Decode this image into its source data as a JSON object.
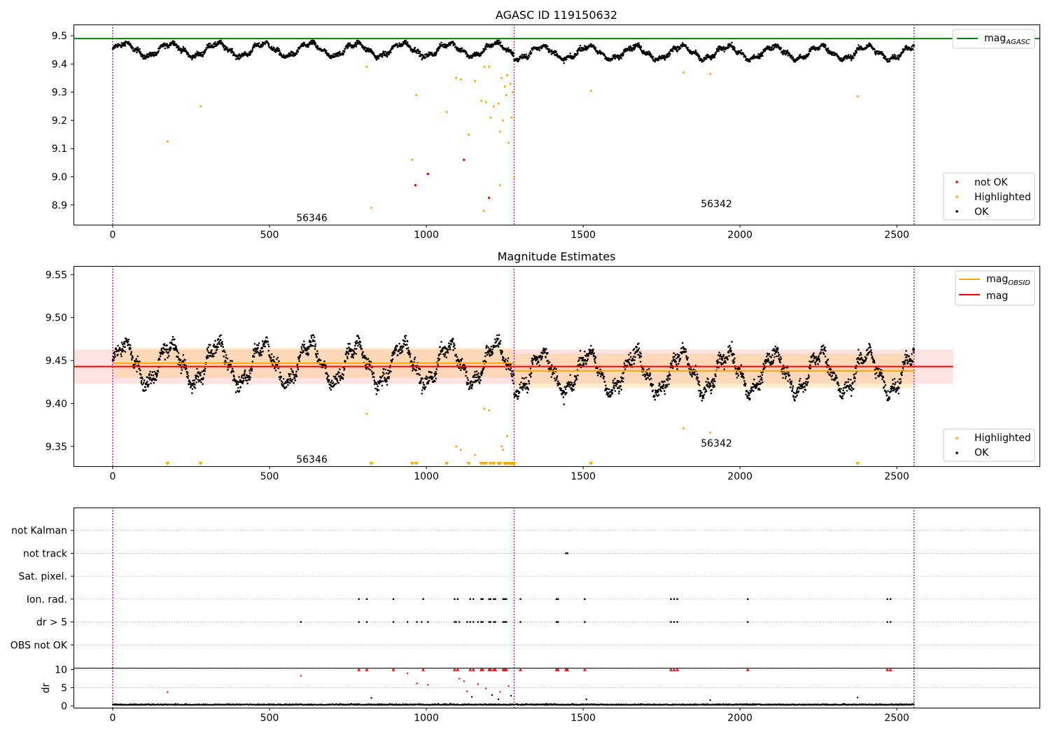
{
  "chart_data": [
    {
      "type": "scatter",
      "title": "AGASC ID 119150632",
      "xlabel": "",
      "ylabel": "",
      "xlim": [
        -125,
        2955
      ],
      "ylim": [
        8.83,
        9.54
      ],
      "xticks": [
        0,
        500,
        1000,
        1500,
        2000,
        2500
      ],
      "yticks": [
        8.9,
        9.0,
        9.1,
        9.2,
        9.3,
        9.4,
        9.5
      ],
      "ytick_labels": [
        "8.9",
        "9.0",
        "9.1",
        "9.2",
        "9.3",
        "9.4",
        "9.5"
      ],
      "vlines": [
        0,
        1280,
        2555
      ],
      "hline": {
        "name": "mag_AGASC",
        "value": 9.49,
        "color": "#008000"
      },
      "legend_top": {
        "label": "mag",
        "sub": "AGASC"
      },
      "legend_bottom": [
        {
          "label": "not OK",
          "color": "#ff0000"
        },
        {
          "label": "Highlighted",
          "color": "#ffa500"
        },
        {
          "label": "OK",
          "color": "#000000"
        }
      ],
      "annotations": [
        {
          "text": "56346",
          "x": 635,
          "y": 8.855
        },
        {
          "text": "56342",
          "x": 1925,
          "y": 8.905
        }
      ],
      "ok_series": {
        "name": "OK",
        "x_range": [
          0,
          2555
        ],
        "baseline": 9.445,
        "mean_by_obsid": [
          9.45,
          9.44
        ],
        "amplitude": 0.025,
        "period": 148
      },
      "highlighted_points": [
        {
          "x": 175,
          "y": 9.125
        },
        {
          "x": 280,
          "y": 9.25
        },
        {
          "x": 810,
          "y": 9.39
        },
        {
          "x": 825,
          "y": 8.89
        },
        {
          "x": 955,
          "y": 9.06
        },
        {
          "x": 968,
          "y": 9.29
        },
        {
          "x": 1065,
          "y": 9.23
        },
        {
          "x": 1095,
          "y": 9.35
        },
        {
          "x": 1110,
          "y": 9.345
        },
        {
          "x": 1135,
          "y": 9.15
        },
        {
          "x": 1155,
          "y": 9.34
        },
        {
          "x": 1175,
          "y": 9.27
        },
        {
          "x": 1183,
          "y": 8.88
        },
        {
          "x": 1190,
          "y": 9.265
        },
        {
          "x": 1205,
          "y": 9.21
        },
        {
          "x": 1215,
          "y": 9.25
        },
        {
          "x": 1230,
          "y": 9.26
        },
        {
          "x": 1235,
          "y": 9.16
        },
        {
          "x": 1240,
          "y": 9.35
        },
        {
          "x": 1245,
          "y": 9.2
        },
        {
          "x": 1250,
          "y": 9.32
        },
        {
          "x": 1255,
          "y": 9.29
        },
        {
          "x": 1258,
          "y": 9.36
        },
        {
          "x": 1262,
          "y": 9.12
        },
        {
          "x": 1268,
          "y": 9.33
        },
        {
          "x": 1272,
          "y": 9.21
        },
        {
          "x": 1275,
          "y": 9.3
        },
        {
          "x": 1235,
          "y": 8.97
        },
        {
          "x": 1280,
          "y": 9.0
        },
        {
          "x": 1185,
          "y": 9.39
        },
        {
          "x": 1200,
          "y": 9.39
        },
        {
          "x": 1525,
          "y": 9.305
        },
        {
          "x": 1820,
          "y": 9.37
        },
        {
          "x": 1905,
          "y": 9.365
        },
        {
          "x": 2375,
          "y": 9.285
        }
      ],
      "not_ok_points": [
        {
          "x": 965,
          "y": 8.97
        },
        {
          "x": 1005,
          "y": 9.01
        },
        {
          "x": 1120,
          "y": 9.06
        },
        {
          "x": 1200,
          "y": 8.925
        }
      ]
    },
    {
      "type": "scatter",
      "title": "Magnitude Estimates",
      "xlabel": "",
      "ylabel": "",
      "xlim": [
        -125,
        2955
      ],
      "ylim": [
        9.327,
        9.56
      ],
      "xticks": [
        0,
        500,
        1000,
        1500,
        2000,
        2500
      ],
      "yticks": [
        9.35,
        9.4,
        9.45,
        9.5,
        9.55
      ],
      "ytick_labels": [
        "9.35",
        "9.40",
        "9.45",
        "9.50",
        "9.55"
      ],
      "vlines": [
        0,
        1280,
        2555
      ],
      "mag_line": {
        "value": 9.443,
        "band": [
          9.423,
          9.463
        ],
        "x_range": [
          -125,
          2680
        ],
        "color": "#ff0000"
      },
      "obsid_lines": [
        {
          "x_range": [
            0,
            1280
          ],
          "value": 9.447,
          "band": [
            9.43,
            9.465
          ]
        },
        {
          "x_range": [
            1280,
            2555
          ],
          "value": 9.438,
          "band": [
            9.418,
            9.458
          ]
        }
      ],
      "legend_top": [
        {
          "label": "mag",
          "sub": "OBSID",
          "color": "#ffa500"
        },
        {
          "label": "mag",
          "sub": "",
          "color": "#ff0000"
        }
      ],
      "legend_bottom": [
        {
          "label": "Highlighted",
          "color": "#ffa500"
        },
        {
          "label": "OK",
          "color": "#000000"
        }
      ],
      "annotations": [
        {
          "text": "56346",
          "x": 635,
          "y": 9.335
        },
        {
          "text": "56342",
          "x": 1925,
          "y": 9.354
        }
      ],
      "highlighted_points": [
        {
          "x": 810,
          "y": 9.388
        },
        {
          "x": 1095,
          "y": 9.35
        },
        {
          "x": 1110,
          "y": 9.346
        },
        {
          "x": 1155,
          "y": 9.34
        },
        {
          "x": 1185,
          "y": 9.394
        },
        {
          "x": 1200,
          "y": 9.392
        },
        {
          "x": 1240,
          "y": 9.35
        },
        {
          "x": 1245,
          "y": 9.346
        },
        {
          "x": 1258,
          "y": 9.362
        },
        {
          "x": 1820,
          "y": 9.371
        },
        {
          "x": 1905,
          "y": 9.366
        }
      ],
      "clipped_markers_x": [
        175,
        280,
        825,
        955,
        968,
        1065,
        1135,
        1175,
        1183,
        1190,
        1205,
        1215,
        1230,
        1235,
        1250,
        1255,
        1262,
        1268,
        1272,
        1275,
        1280,
        1525,
        2375
      ]
    },
    {
      "type": "scatter",
      "title": "",
      "xlim": [
        -125,
        2955
      ],
      "categories": [
        "not Kalman",
        "not track",
        "Sat. pixel.",
        "Ion. rad.",
        "dr > 5",
        "OBS not OK"
      ],
      "flags": {
        "not track": [
          1445,
          1450
        ],
        "Ion. rad.": [
          785,
          810,
          895,
          990,
          1090,
          1100,
          1140,
          1150,
          1175,
          1180,
          1200,
          1205,
          1215,
          1220,
          1245,
          1250,
          1255,
          1300,
          1415,
          1420,
          1505,
          1780,
          1790,
          1800,
          2025,
          2470,
          2480
        ],
        "dr > 5": [
          600,
          785,
          810,
          895,
          940,
          970,
          985,
          1005,
          1090,
          1095,
          1105,
          1130,
          1140,
          1150,
          1165,
          1175,
          1180,
          1200,
          1205,
          1215,
          1220,
          1245,
          1250,
          1255,
          1300,
          1415,
          1420,
          1505,
          1780,
          1790,
          1800,
          2025,
          2470,
          2480
        ]
      }
    },
    {
      "type": "scatter",
      "title": "",
      "ylabel": "dr",
      "xlim": [
        -125,
        2955
      ],
      "ylim": [
        -0.5,
        10.5
      ],
      "xticks": [
        0,
        500,
        1000,
        1500,
        2000,
        2500
      ],
      "yticks": [
        0,
        5,
        10
      ],
      "ytick_labels": [
        "0",
        "5",
        "10"
      ],
      "capped_value": 10,
      "capped_x": [
        785,
        810,
        895,
        990,
        1090,
        1100,
        1140,
        1150,
        1175,
        1180,
        1200,
        1205,
        1215,
        1220,
        1245,
        1250,
        1255,
        1300,
        1415,
        1420,
        1445,
        1450,
        1505,
        1780,
        1790,
        1800,
        2025,
        2470,
        2480
      ],
      "elevated_points": [
        {
          "x": 175,
          "y": 3.8,
          "flag": "red"
        },
        {
          "x": 600,
          "y": 8.3,
          "flag": "red"
        },
        {
          "x": 940,
          "y": 9.0,
          "flag": "red"
        },
        {
          "x": 970,
          "y": 6.2,
          "flag": "red"
        },
        {
          "x": 1005,
          "y": 5.8,
          "flag": "red"
        },
        {
          "x": 1105,
          "y": 7.5,
          "flag": "red"
        },
        {
          "x": 1120,
          "y": 6.8,
          "flag": "red"
        },
        {
          "x": 1130,
          "y": 4.0,
          "flag": "red"
        },
        {
          "x": 1165,
          "y": 6.0,
          "flag": "red"
        },
        {
          "x": 1190,
          "y": 4.8,
          "flag": "red"
        },
        {
          "x": 1235,
          "y": 3.9,
          "flag": "red"
        },
        {
          "x": 1262,
          "y": 5.5,
          "flag": "red"
        },
        {
          "x": 825,
          "y": 2.2,
          "flag": "black"
        },
        {
          "x": 1145,
          "y": 2.5,
          "flag": "black"
        },
        {
          "x": 1210,
          "y": 3.0,
          "flag": "black"
        },
        {
          "x": 1270,
          "y": 2.8,
          "flag": "black"
        },
        {
          "x": 1230,
          "y": 1.8,
          "flag": "black"
        },
        {
          "x": 1510,
          "y": 1.8,
          "flag": "black"
        },
        {
          "x": 1905,
          "y": 1.6,
          "flag": "black"
        },
        {
          "x": 2375,
          "y": 2.3,
          "flag": "black"
        }
      ]
    }
  ]
}
